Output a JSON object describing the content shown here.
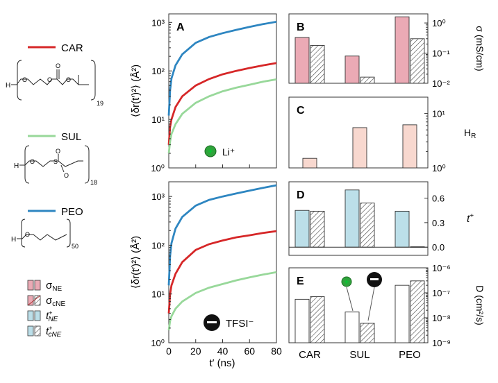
{
  "legend": {
    "polymers": [
      {
        "label": "CAR",
        "color": "#d62728",
        "repeat": "19"
      },
      {
        "label": "SUL",
        "color": "#98d89a",
        "repeat": "18"
      },
      {
        "label": "PEO",
        "color": "#2e86c1",
        "repeat": "50"
      }
    ],
    "keys": [
      {
        "label": "σ",
        "sub": "NE",
        "fill": "#ebaab5",
        "hatch": false
      },
      {
        "label": "σ",
        "sub": "cNE",
        "fill": "#ebaab5",
        "hatch": true
      },
      {
        "label": "t",
        "sup": "+",
        "sub": "NE",
        "fill": "#bcdfe9",
        "hatch": false
      },
      {
        "label": "t",
        "sup": "+",
        "sub": "cNE",
        "fill": "#bcdfe9",
        "hatch": true
      }
    ]
  },
  "colors": {
    "CAR": "#d62728",
    "SUL": "#98d89a",
    "PEO": "#2e86c1",
    "sigma_fill": "#ebaab5",
    "hr_fill": "#f8d8cf",
    "t_fill": "#bcdfe9",
    "ion_li": "#2fa33b",
    "ion_tfsi": "#111111"
  },
  "chart_data": [
    {
      "panel": "A",
      "type": "line",
      "ylabel": "⟨δr(t′)²⟩ (Å²)",
      "xlabel": "",
      "xlim": [
        0,
        80
      ],
      "ylim": [
        1,
        1500
      ],
      "yscale": "log",
      "xticks": [
        "0",
        "20",
        "40",
        "60",
        "80"
      ],
      "yticks": [
        "10⁰",
        "10¹",
        "10²",
        "10³"
      ],
      "annotation": "Li⁺",
      "series": [
        {
          "name": "CAR",
          "x": [
            0,
            1,
            2,
            5,
            10,
            20,
            30,
            40,
            50,
            60,
            70,
            80
          ],
          "y": [
            3,
            7,
            10,
            18,
            30,
            50,
            68,
            85,
            100,
            115,
            130,
            145
          ]
        },
        {
          "name": "SUL",
          "x": [
            0,
            1,
            2,
            5,
            10,
            20,
            30,
            40,
            50,
            60,
            70,
            80
          ],
          "y": [
            2,
            3.5,
            5,
            8,
            13,
            22,
            30,
            38,
            45,
            52,
            60,
            67
          ]
        },
        {
          "name": "PEO",
          "x": [
            0,
            1,
            2,
            5,
            10,
            20,
            30,
            40,
            50,
            60,
            70,
            80
          ],
          "y": [
            12,
            40,
            70,
            130,
            220,
            380,
            500,
            600,
            700,
            810,
            920,
            1030
          ]
        }
      ]
    },
    {
      "panel": "",
      "type": "line",
      "ylabel": "⟨δr(t′)²⟩ (Å²)",
      "xlabel": "t′ (ns)",
      "xlim": [
        0,
        80
      ],
      "ylim": [
        1,
        2000
      ],
      "yscale": "log",
      "xticks": [
        "0",
        "20",
        "40",
        "60",
        "80"
      ],
      "yticks": [
        "10⁰",
        "10¹",
        "10²",
        "10³"
      ],
      "annotation": "TFSI⁻",
      "series": [
        {
          "name": "CAR",
          "x": [
            0,
            1,
            2,
            5,
            10,
            20,
            30,
            40,
            50,
            60,
            70,
            80
          ],
          "y": [
            4,
            10,
            15,
            26,
            45,
            80,
            105,
            125,
            145,
            160,
            178,
            195
          ]
        },
        {
          "name": "SUL",
          "x": [
            0,
            1,
            2,
            5,
            10,
            20,
            30,
            40,
            50,
            60,
            70,
            80
          ],
          "y": [
            1.8,
            2.8,
            3.5,
            5,
            7,
            10.5,
            13.5,
            16,
            19,
            22,
            25,
            28
          ]
        },
        {
          "name": "PEO",
          "x": [
            0,
            1,
            2,
            5,
            10,
            20,
            30,
            40,
            50,
            60,
            70,
            80
          ],
          "y": [
            15,
            60,
            110,
            220,
            380,
            650,
            850,
            1000,
            1150,
            1320,
            1500,
            1700
          ]
        }
      ]
    },
    {
      "panel": "B",
      "type": "bar",
      "yscale": "log",
      "categories": [
        "CAR",
        "SUL",
        "PEO"
      ],
      "ylim": [
        0.01,
        2
      ],
      "ylabel": "σ (mS/cm)",
      "yticks": [
        "10⁻²",
        "10⁻¹",
        "10⁰"
      ],
      "series": [
        {
          "name": "σNE",
          "values": [
            0.33,
            0.08,
            1.6
          ]
        },
        {
          "name": "σcNE",
          "values": [
            0.18,
            0.016,
            0.3
          ]
        }
      ]
    },
    {
      "panel": "C",
      "type": "bar",
      "yscale": "log",
      "categories": [
        "CAR",
        "SUL",
        "PEO"
      ],
      "ylim": [
        1,
        20
      ],
      "ylabel": "H_R",
      "yticks": [
        "10⁰",
        "10¹"
      ],
      "series": [
        {
          "name": "H_R",
          "values": [
            1.5,
            5.5,
            6.2
          ]
        }
      ]
    },
    {
      "panel": "D",
      "type": "bar",
      "categories": [
        "CAR",
        "SUL",
        "PEO"
      ],
      "ylim": [
        -0.1,
        0.8
      ],
      "ylabel": "t⁺",
      "yticks": [
        "0.0",
        "0.3",
        "0.6"
      ],
      "series": [
        {
          "name": "t⁺NE",
          "values": [
            0.45,
            0.7,
            0.44
          ]
        },
        {
          "name": "t⁺cNE",
          "values": [
            0.44,
            0.54,
            0.005
          ]
        }
      ]
    },
    {
      "panel": "E",
      "type": "bar",
      "yscale": "log",
      "categories": [
        "CAR",
        "SUL",
        "PEO"
      ],
      "ylim": [
        1e-09,
        1e-06
      ],
      "ylabel": "D (cm²/s)",
      "yticks": [
        "10⁻⁹",
        "10⁻⁸",
        "10⁻⁷",
        "10⁻⁶"
      ],
      "series": [
        {
          "name": "cation",
          "values": [
            5.5e-08,
            1.7e-08,
            2e-07
          ]
        },
        {
          "name": "anion",
          "values": [
            7e-08,
            6e-09,
            3e-07
          ]
        }
      ]
    }
  ]
}
